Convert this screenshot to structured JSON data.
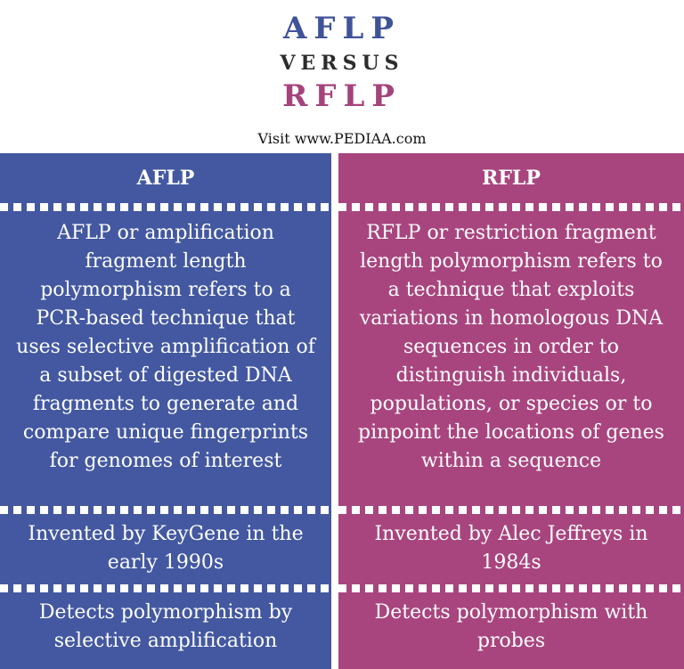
{
  "title": {
    "line1": "AFLP",
    "line2": "VERSUS",
    "line3": "RFLP",
    "visit": "Visit www.PEDIAA.com"
  },
  "colors": {
    "aflp": "#4358a0",
    "rflp": "#a8457f"
  },
  "columns": [
    {
      "header": "AFLP",
      "rows": [
        "AFLP or amplification fragment length polymorphism refers to a PCR-based technique that uses selective amplification of a subset of digested DNA fragments to generate and compare unique fingerprints for genomes of interest",
        "Invented by KeyGene in the early 1990s",
        "Detects polymorphism by selective amplification"
      ]
    },
    {
      "header": "RFLP",
      "rows": [
        "RFLP or restriction fragment length polymorphism refers to a technique that exploits variations in homologous DNA sequences in order to distinguish individuals, populations, or species or to pinpoint the locations of genes within a sequence",
        "Invented by Alec Jeffreys in 1984s",
        "Detects polymorphism with probes"
      ]
    }
  ]
}
